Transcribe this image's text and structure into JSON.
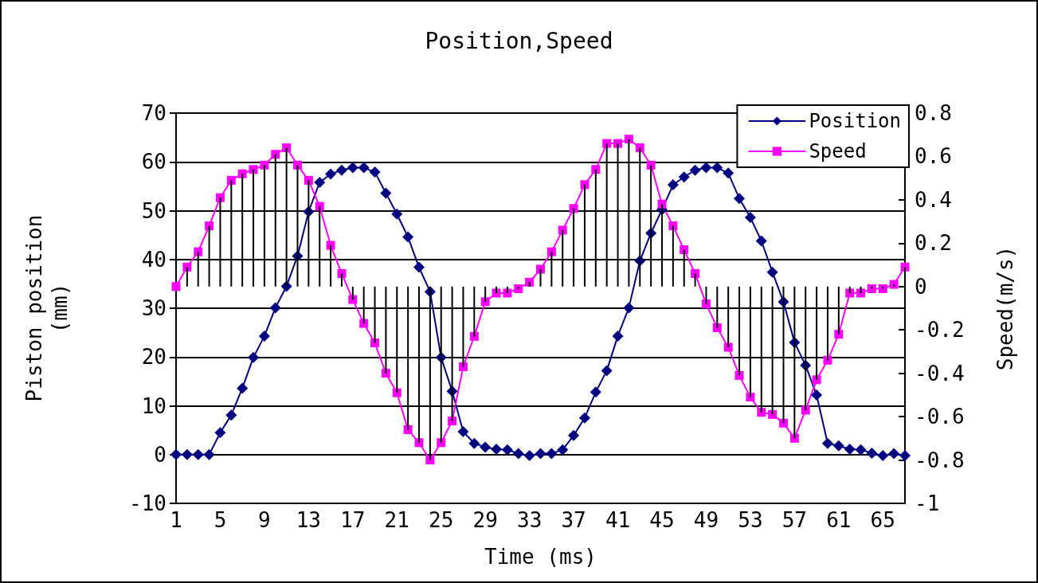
{
  "chart_data": {
    "type": "line",
    "title": "Position,Speed",
    "xlabel": "Time (ms)",
    "ylabel": "Piston position\n(mm)",
    "y2label": "Speed(m/s)",
    "categories": [
      "1",
      null,
      null,
      null,
      "5",
      null,
      null,
      null,
      "9",
      null,
      null,
      null,
      "13",
      null,
      null,
      null,
      "17",
      null,
      null,
      null,
      "21",
      null,
      null,
      null,
      "25",
      null,
      null,
      null,
      "29",
      null,
      null,
      null,
      "33",
      null,
      null,
      null,
      "37",
      null,
      null,
      null,
      "41",
      null,
      null,
      null,
      "45",
      null,
      null,
      null,
      "49",
      null,
      null,
      null,
      "53",
      null,
      null,
      null,
      "57",
      null,
      null,
      null,
      "61",
      null,
      null,
      null,
      "65",
      null,
      null
    ],
    "series": [
      {
        "name": "Position",
        "color": "#000080",
        "marker": "diamond",
        "values": [
          0,
          0,
          0,
          0,
          4.5,
          8.1,
          13.6,
          19.9,
          24.3,
          30.1,
          34.5,
          40.7,
          49.8,
          55.8,
          57.5,
          58.3,
          58.8,
          58.8,
          57.9,
          53.6,
          49.3,
          44.6,
          38.4,
          33.4,
          19.9,
          13.0,
          4.7,
          2.3,
          1.5,
          1.1,
          1.0,
          0.2,
          -0.2,
          0.2,
          0.2,
          1.0,
          3.9,
          7.5,
          12.8,
          17.2,
          24.3,
          30.1,
          39.7,
          45.4,
          50.2,
          55.3,
          56.9,
          58.3,
          58.8,
          58.8,
          57.7,
          52.5,
          48.6,
          43.8,
          37.4,
          31.3,
          23.0,
          18.3,
          12.2,
          2.3,
          1.8,
          1.1,
          1.0,
          0.3,
          -0.2,
          0.2,
          -0.2
        ]
      },
      {
        "name": "Speed",
        "color": "#ff00ff",
        "marker": "square",
        "axis": "y2",
        "values": [
          0,
          0.09,
          0.16,
          0.28,
          0.41,
          0.49,
          0.52,
          0.54,
          0.56,
          0.61,
          0.64,
          0.56,
          0.49,
          0.37,
          0.19,
          0.06,
          -0.06,
          -0.17,
          -0.26,
          -0.4,
          -0.49,
          -0.66,
          -0.72,
          -0.8,
          -0.72,
          -0.62,
          -0.37,
          -0.23,
          -0.07,
          -0.03,
          -0.03,
          -0.01,
          0.02,
          0.08,
          0.16,
          0.26,
          0.36,
          0.47,
          0.54,
          0.66,
          0.66,
          0.68,
          0.64,
          0.56,
          0.38,
          0.28,
          0.17,
          0.06,
          -0.08,
          -0.19,
          -0.28,
          -0.41,
          -0.51,
          -0.58,
          -0.59,
          -0.63,
          -0.7,
          -0.57,
          -0.43,
          -0.34,
          -0.22,
          -0.03,
          -0.03,
          -0.01,
          -0.01,
          0.01,
          0.09
        ]
      },
      {
        "type": "bar",
        "color": "#000000",
        "axis": "y2",
        "values": [
          0,
          0.09,
          0.16,
          0.28,
          0.41,
          0.49,
          0.52,
          0.54,
          0.56,
          0.61,
          0.64,
          0.56,
          0.49,
          0.37,
          0.19,
          0.06,
          -0.06,
          -0.17,
          -0.26,
          -0.4,
          -0.49,
          -0.66,
          -0.72,
          -0.8,
          -0.72,
          -0.62,
          -0.37,
          -0.23,
          -0.07,
          -0.03,
          -0.03,
          -0.01,
          0.02,
          0.08,
          0.16,
          0.26,
          0.36,
          0.47,
          0.54,
          0.66,
          0.66,
          0.68,
          0.64,
          0.56,
          0.38,
          0.28,
          0.17,
          0.06,
          -0.08,
          -0.19,
          -0.28,
          -0.41,
          -0.51,
          -0.58,
          -0.59,
          -0.63,
          -0.7,
          -0.57,
          -0.43,
          -0.34,
          -0.22,
          -0.03,
          -0.03,
          -0.01,
          -0.01,
          0.01,
          0.09
        ]
      }
    ],
    "ylim": [
      -10,
      70
    ],
    "yticks": [
      -10,
      0,
      10,
      20,
      30,
      40,
      50,
      60,
      70
    ],
    "y2lim": [
      -1,
      0.8
    ],
    "y2ticks": [
      -1,
      -0.8,
      -0.6,
      -0.4,
      -0.2,
      0,
      0.2,
      0.4,
      0.6,
      0.8
    ],
    "grid": "y",
    "legend": "top right",
    "line_style": "solid"
  }
}
